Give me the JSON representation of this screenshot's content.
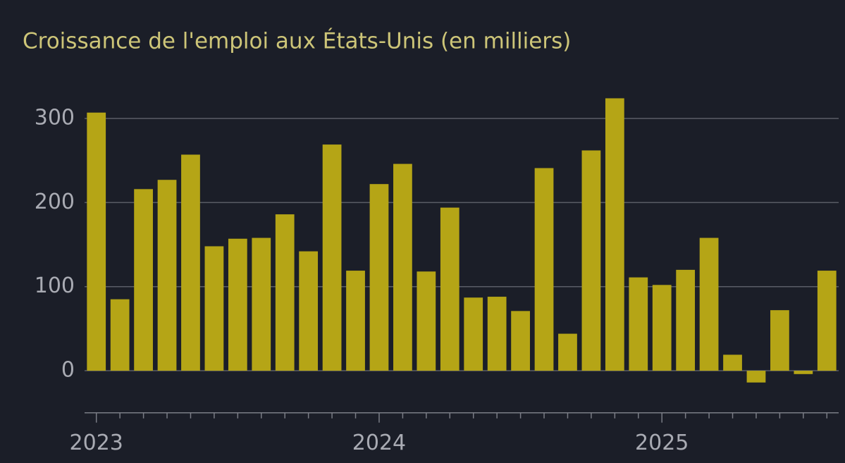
{
  "chart_data": {
    "type": "bar",
    "title": "Croissance de l'emploi aux États-Unis (en milliers)",
    "categories": [
      "2023",
      null,
      null,
      null,
      null,
      null,
      null,
      null,
      null,
      null,
      null,
      null,
      "2024",
      null,
      null,
      null,
      null,
      null,
      null,
      null,
      null,
      null,
      null,
      null,
      "2025",
      null,
      null,
      null,
      null,
      null,
      null,
      null
    ],
    "values": [
      307,
      85,
      216,
      227,
      257,
      148,
      157,
      158,
      186,
      142,
      269,
      119,
      222,
      246,
      118,
      194,
      87,
      88,
      71,
      241,
      44,
      262,
      324,
      111,
      102,
      120,
      158,
      19,
      -14,
      72,
      -4,
      119
    ],
    "color": "#b5a516",
    "ylim": [
      -50,
      340
    ],
    "yticks": [
      0,
      100,
      200,
      300
    ],
    "grid": true
  }
}
